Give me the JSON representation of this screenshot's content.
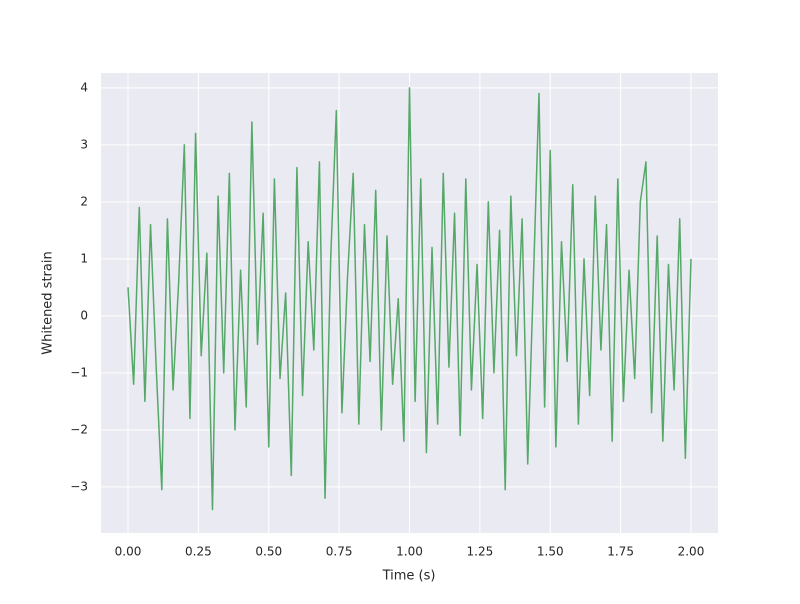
{
  "chart_data": {
    "type": "line",
    "xlabel": "Time (s)",
    "ylabel": "Whitened strain",
    "color": "#55a868",
    "grid": true,
    "xlim": [
      -0.096,
      2.096
    ],
    "ylim": [
      -3.81,
      4.26
    ],
    "xticks": [
      {
        "value": 0,
        "label": "0.00"
      },
      {
        "value": 0.25,
        "label": "0.25"
      },
      {
        "value": 0.5,
        "label": "0.50"
      },
      {
        "value": 0.75,
        "label": "0.75"
      },
      {
        "value": 1,
        "label": "1.00"
      },
      {
        "value": 1.25,
        "label": "1.25"
      },
      {
        "value": 1.5,
        "label": "1.50"
      },
      {
        "value": 1.75,
        "label": "1.75"
      },
      {
        "value": 2,
        "label": "2.00"
      }
    ],
    "yticks": [
      {
        "value": -3,
        "label": "−3"
      },
      {
        "value": -2,
        "label": "−2"
      },
      {
        "value": -1,
        "label": "−1"
      },
      0,
      1,
      2,
      3,
      4
    ],
    "x": [
      0,
      0.02,
      0.04,
      0.06,
      0.08,
      0.1,
      0.12,
      0.14,
      0.16,
      0.18,
      0.2,
      0.22,
      0.24,
      0.26,
      0.28,
      0.3,
      0.32,
      0.34,
      0.36,
      0.38,
      0.4,
      0.42,
      0.44,
      0.46,
      0.48,
      0.5,
      0.52,
      0.54,
      0.56,
      0.58,
      0.6,
      0.62,
      0.64,
      0.66,
      0.68,
      0.7,
      0.72,
      0.74,
      0.76,
      0.78,
      0.8,
      0.82,
      0.84,
      0.86,
      0.88,
      0.9,
      0.92,
      0.94,
      0.96,
      0.98,
      1,
      1.02,
      1.04,
      1.06,
      1.08,
      1.1,
      1.12,
      1.14,
      1.16,
      1.18,
      1.2,
      1.22,
      1.24,
      1.26,
      1.28,
      1.3,
      1.32,
      1.34,
      1.36,
      1.38,
      1.4,
      1.42,
      1.44,
      1.46,
      1.48,
      1.5,
      1.52,
      1.54,
      1.56,
      1.58,
      1.6,
      1.62,
      1.64,
      1.66,
      1.68,
      1.7,
      1.72,
      1.74,
      1.76,
      1.78,
      1.8,
      1.82,
      1.84,
      1.86,
      1.88,
      1.9,
      1.92,
      1.94,
      1.96,
      1.98,
      2
    ],
    "values": [
      0.5,
      -1.2,
      1.9,
      -1.5,
      1.6,
      -0.9,
      -3.05,
      1.7,
      -1.3,
      0.6,
      3.0,
      -1.8,
      3.2,
      -0.7,
      1.1,
      -3.4,
      2.1,
      -1.0,
      2.5,
      -2.0,
      0.8,
      -1.6,
      3.4,
      -0.5,
      1.8,
      -2.3,
      2.4,
      -1.1,
      0.4,
      -2.8,
      2.6,
      -1.4,
      1.3,
      -0.6,
      2.7,
      -3.2,
      1.0,
      3.6,
      -1.7,
      0.7,
      2.5,
      -1.9,
      1.6,
      -0.8,
      2.2,
      -2.0,
      1.4,
      -1.2,
      0.3,
      -2.2,
      4.0,
      -1.5,
      2.4,
      -2.4,
      1.2,
      -1.9,
      2.5,
      -0.9,
      1.8,
      -2.1,
      2.4,
      -1.3,
      0.9,
      -1.8,
      2.0,
      -1.0,
      1.5,
      -3.05,
      2.1,
      -0.7,
      1.7,
      -2.6,
      0.6,
      3.9,
      -1.6,
      2.9,
      -2.3,
      1.3,
      -0.8,
      2.3,
      -1.9,
      1.0,
      -1.4,
      2.1,
      -0.6,
      1.6,
      -2.2,
      2.4,
      -1.5,
      0.8,
      -1.1,
      2.0,
      2.7,
      -1.7,
      1.4,
      -2.2,
      0.9,
      -1.3,
      1.7,
      -2.5,
      1.0
    ]
  }
}
